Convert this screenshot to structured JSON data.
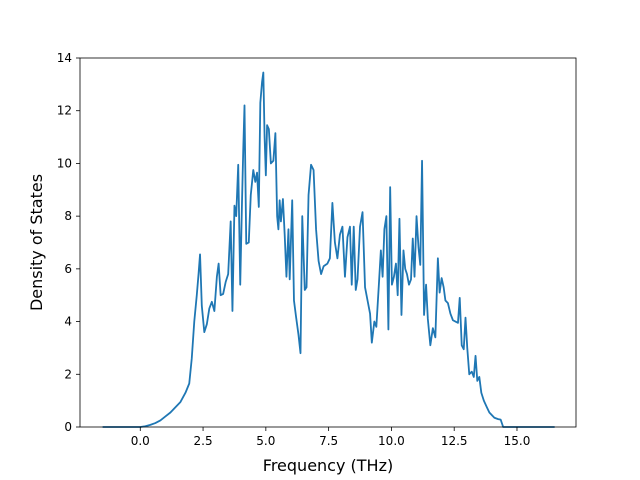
{
  "chart_data": {
    "type": "line",
    "title": "",
    "xlabel": "Frequency (THz)",
    "ylabel": "Density of States",
    "xlim": [
      -2.4,
      17.35
    ],
    "ylim": [
      0,
      14
    ],
    "xticks": [
      0.0,
      2.5,
      5.0,
      7.5,
      10.0,
      12.5,
      15.0
    ],
    "xtick_labels": [
      "0.0",
      "2.5",
      "5.0",
      "7.5",
      "10.0",
      "12.5",
      "15.0"
    ],
    "yticks": [
      0,
      2,
      4,
      6,
      8,
      10,
      12,
      14
    ],
    "ytick_labels": [
      "0",
      "2",
      "4",
      "6",
      "8",
      "10",
      "12",
      "14"
    ],
    "grid": false,
    "legend": "none",
    "series": [
      {
        "color": "#1f77b4",
        "points": [
          [
            -1.5,
            0.0
          ],
          [
            -1.0,
            0.0
          ],
          [
            -0.5,
            0.0
          ],
          [
            0.0,
            0.0
          ],
          [
            0.2,
            0.03
          ],
          [
            0.4,
            0.08
          ],
          [
            0.6,
            0.15
          ],
          [
            0.8,
            0.25
          ],
          [
            1.0,
            0.4
          ],
          [
            1.2,
            0.55
          ],
          [
            1.4,
            0.75
          ],
          [
            1.6,
            0.95
          ],
          [
            1.8,
            1.3
          ],
          [
            1.95,
            1.65
          ],
          [
            2.05,
            2.6
          ],
          [
            2.15,
            4.0
          ],
          [
            2.25,
            5.0
          ],
          [
            2.32,
            5.8
          ],
          [
            2.38,
            6.55
          ],
          [
            2.45,
            4.6
          ],
          [
            2.55,
            3.6
          ],
          [
            2.65,
            3.9
          ],
          [
            2.75,
            4.5
          ],
          [
            2.85,
            4.75
          ],
          [
            2.95,
            4.4
          ],
          [
            3.05,
            5.7
          ],
          [
            3.12,
            6.2
          ],
          [
            3.2,
            5.0
          ],
          [
            3.3,
            5.05
          ],
          [
            3.4,
            5.5
          ],
          [
            3.5,
            5.8
          ],
          [
            3.55,
            6.8
          ],
          [
            3.6,
            7.8
          ],
          [
            3.67,
            4.4
          ],
          [
            3.75,
            8.4
          ],
          [
            3.82,
            8.0
          ],
          [
            3.9,
            9.95
          ],
          [
            3.98,
            5.4
          ],
          [
            4.05,
            8.5
          ],
          [
            4.1,
            10.5
          ],
          [
            4.15,
            12.2
          ],
          [
            4.22,
            6.95
          ],
          [
            4.32,
            7.0
          ],
          [
            4.4,
            8.8
          ],
          [
            4.5,
            9.75
          ],
          [
            4.58,
            9.3
          ],
          [
            4.65,
            9.65
          ],
          [
            4.72,
            8.35
          ],
          [
            4.78,
            12.3
          ],
          [
            4.85,
            13.1
          ],
          [
            4.9,
            13.45
          ],
          [
            4.95,
            11.0
          ],
          [
            5.0,
            9.55
          ],
          [
            5.05,
            11.45
          ],
          [
            5.12,
            11.3
          ],
          [
            5.2,
            10.0
          ],
          [
            5.3,
            10.1
          ],
          [
            5.38,
            11.15
          ],
          [
            5.45,
            8.0
          ],
          [
            5.5,
            7.5
          ],
          [
            5.55,
            8.6
          ],
          [
            5.6,
            7.8
          ],
          [
            5.68,
            8.65
          ],
          [
            5.75,
            7.3
          ],
          [
            5.82,
            5.7
          ],
          [
            5.9,
            7.5
          ],
          [
            5.95,
            5.6
          ],
          [
            6.05,
            8.6
          ],
          [
            6.12,
            4.8
          ],
          [
            6.2,
            4.2
          ],
          [
            6.3,
            3.5
          ],
          [
            6.38,
            2.8
          ],
          [
            6.45,
            8.0
          ],
          [
            6.55,
            5.2
          ],
          [
            6.62,
            5.3
          ],
          [
            6.7,
            8.8
          ],
          [
            6.8,
            9.95
          ],
          [
            6.9,
            9.75
          ],
          [
            7.0,
            7.5
          ],
          [
            7.1,
            6.3
          ],
          [
            7.2,
            5.8
          ],
          [
            7.3,
            6.1
          ],
          [
            7.45,
            6.2
          ],
          [
            7.55,
            6.4
          ],
          [
            7.65,
            8.5
          ],
          [
            7.75,
            7.0
          ],
          [
            7.85,
            6.4
          ],
          [
            7.95,
            7.3
          ],
          [
            8.05,
            7.6
          ],
          [
            8.15,
            5.7
          ],
          [
            8.25,
            7.2
          ],
          [
            8.35,
            7.6
          ],
          [
            8.42,
            5.4
          ],
          [
            8.5,
            7.6
          ],
          [
            8.58,
            5.2
          ],
          [
            8.65,
            5.6
          ],
          [
            8.75,
            7.6
          ],
          [
            8.85,
            8.15
          ],
          [
            8.95,
            5.3
          ],
          [
            9.05,
            4.8
          ],
          [
            9.15,
            4.3
          ],
          [
            9.22,
            3.2
          ],
          [
            9.32,
            4.0
          ],
          [
            9.4,
            3.8
          ],
          [
            9.5,
            5.4
          ],
          [
            9.58,
            6.7
          ],
          [
            9.65,
            5.7
          ],
          [
            9.72,
            7.5
          ],
          [
            9.8,
            8.0
          ],
          [
            9.88,
            3.7
          ],
          [
            9.95,
            9.1
          ],
          [
            10.02,
            5.4
          ],
          [
            10.1,
            5.7
          ],
          [
            10.18,
            6.2
          ],
          [
            10.25,
            5.0
          ],
          [
            10.32,
            7.9
          ],
          [
            10.4,
            4.25
          ],
          [
            10.48,
            6.7
          ],
          [
            10.55,
            6.0
          ],
          [
            10.62,
            5.8
          ],
          [
            10.7,
            5.4
          ],
          [
            10.78,
            5.6
          ],
          [
            10.85,
            7.15
          ],
          [
            10.92,
            5.7
          ],
          [
            11.0,
            8.0
          ],
          [
            11.08,
            6.8
          ],
          [
            11.15,
            6.15
          ],
          [
            11.22,
            10.1
          ],
          [
            11.3,
            4.25
          ],
          [
            11.38,
            5.4
          ],
          [
            11.45,
            4.1
          ],
          [
            11.55,
            3.1
          ],
          [
            11.65,
            3.75
          ],
          [
            11.75,
            3.4
          ],
          [
            11.85,
            6.4
          ],
          [
            11.92,
            5.1
          ],
          [
            12.0,
            5.65
          ],
          [
            12.08,
            5.3
          ],
          [
            12.15,
            4.8
          ],
          [
            12.25,
            4.7
          ],
          [
            12.35,
            4.3
          ],
          [
            12.45,
            4.05
          ],
          [
            12.55,
            4.0
          ],
          [
            12.65,
            3.95
          ],
          [
            12.72,
            4.9
          ],
          [
            12.8,
            3.1
          ],
          [
            12.88,
            2.95
          ],
          [
            12.95,
            4.15
          ],
          [
            13.02,
            3.0
          ],
          [
            13.1,
            2.0
          ],
          [
            13.2,
            2.1
          ],
          [
            13.28,
            1.9
          ],
          [
            13.35,
            2.7
          ],
          [
            13.42,
            1.75
          ],
          [
            13.5,
            1.9
          ],
          [
            13.58,
            1.3
          ],
          [
            13.68,
            1.0
          ],
          [
            13.8,
            0.75
          ],
          [
            13.9,
            0.55
          ],
          [
            14.0,
            0.45
          ],
          [
            14.1,
            0.35
          ],
          [
            14.25,
            0.3
          ],
          [
            14.35,
            0.28
          ],
          [
            14.45,
            0.0
          ],
          [
            15.0,
            0.0
          ],
          [
            15.5,
            0.0
          ],
          [
            16.0,
            0.0
          ],
          [
            16.5,
            0.0
          ]
        ]
      }
    ]
  }
}
